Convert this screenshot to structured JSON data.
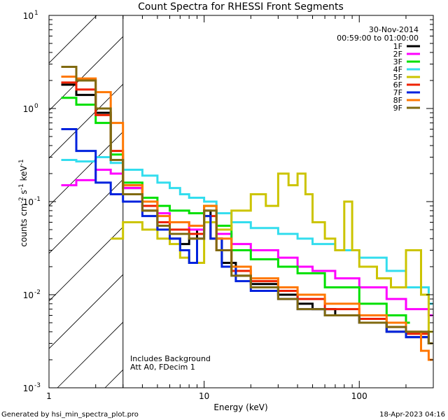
{
  "chart_data": {
    "type": "line",
    "title": "Count Spectra for RHESSI Front Segments",
    "xlabel": "Energy (keV)",
    "ylabel": "counts cm-2 s-1 keV-1",
    "xscale": "log",
    "yscale": "log",
    "xlim": [
      1,
      300
    ],
    "ylim": [
      0.001,
      10
    ],
    "x_ticks": [
      {
        "value": 1,
        "label": "1"
      },
      {
        "value": 10,
        "label": "10"
      },
      {
        "value": 100,
        "label": "100"
      }
    ],
    "y_ticks": [
      {
        "value": 10,
        "base": "10",
        "exp": "1"
      },
      {
        "value": 1,
        "base": "10",
        "exp": "0"
      },
      {
        "value": 0.1,
        "base": "10",
        "exp": "-1"
      },
      {
        "value": 0.01,
        "base": "10",
        "exp": "-2"
      },
      {
        "value": 0.001,
        "base": "10",
        "exp": "-3"
      }
    ],
    "hatched_region_x": [
      1,
      3
    ],
    "date": "30-Nov-2014",
    "time_range": "00:59:00 to 01:00:00",
    "annotations": [
      "Includes Background",
      "Att A0, FDecim 1"
    ],
    "legend_position": "top-right",
    "series": [
      {
        "name": "1F",
        "color": "#000000",
        "points": [
          [
            1.2,
            1.8
          ],
          [
            1.5,
            1.4
          ],
          [
            2,
            0.9
          ],
          [
            2.5,
            0.28
          ],
          [
            3,
            0.14
          ],
          [
            4,
            0.08
          ],
          [
            5,
            0.05
          ],
          [
            6,
            0.04
          ],
          [
            7,
            0.035
          ],
          [
            8,
            0.04
          ],
          [
            9,
            0.05
          ],
          [
            10,
            0.08
          ],
          [
            11,
            0.04
          ],
          [
            13,
            0.022
          ],
          [
            16,
            0.016
          ],
          [
            20,
            0.013
          ],
          [
            30,
            0.01
          ],
          [
            40,
            0.008
          ],
          [
            50,
            0.007
          ],
          [
            70,
            0.006
          ],
          [
            100,
            0.005
          ],
          [
            150,
            0.004
          ],
          [
            200,
            0.0035
          ],
          [
            280,
            0.003
          ]
        ]
      },
      {
        "name": "2F",
        "color": "#ff00ff",
        "points": [
          [
            1.2,
            0.15
          ],
          [
            1.5,
            0.17
          ],
          [
            2,
            0.22
          ],
          [
            2.5,
            0.2
          ],
          [
            3,
            0.14
          ],
          [
            4,
            0.1
          ],
          [
            5,
            0.075
          ],
          [
            6,
            0.06
          ],
          [
            8,
            0.05
          ],
          [
            10,
            0.06
          ],
          [
            12,
            0.045
          ],
          [
            15,
            0.035
          ],
          [
            20,
            0.03
          ],
          [
            30,
            0.025
          ],
          [
            40,
            0.02
          ],
          [
            50,
            0.018
          ],
          [
            70,
            0.015
          ],
          [
            100,
            0.012
          ],
          [
            150,
            0.009
          ],
          [
            200,
            0.007
          ],
          [
            280,
            0.006
          ]
        ]
      },
      {
        "name": "3F",
        "color": "#00e000",
        "points": [
          [
            1.2,
            1.3
          ],
          [
            1.5,
            1.1
          ],
          [
            2,
            0.7
          ],
          [
            2.5,
            0.32
          ],
          [
            3,
            0.16
          ],
          [
            4,
            0.11
          ],
          [
            5,
            0.09
          ],
          [
            6,
            0.08
          ],
          [
            8,
            0.075
          ],
          [
            10,
            0.09
          ],
          [
            12,
            0.055
          ],
          [
            15,
            0.03
          ],
          [
            20,
            0.024
          ],
          [
            30,
            0.02
          ],
          [
            40,
            0.017
          ],
          [
            60,
            0.012
          ],
          [
            100,
            0.008
          ],
          [
            150,
            0.006
          ],
          [
            200,
            0.005
          ]
        ]
      },
      {
        "name": "4F",
        "color": "#33ddee",
        "points": [
          [
            1.2,
            0.28
          ],
          [
            1.5,
            0.27
          ],
          [
            2,
            0.3
          ],
          [
            2.5,
            0.26
          ],
          [
            3,
            0.22
          ],
          [
            4,
            0.19
          ],
          [
            5,
            0.16
          ],
          [
            6,
            0.14
          ],
          [
            7,
            0.12
          ],
          [
            8,
            0.11
          ],
          [
            10,
            0.1
          ],
          [
            12,
            0.075
          ],
          [
            15,
            0.06
          ],
          [
            20,
            0.052
          ],
          [
            30,
            0.045
          ],
          [
            40,
            0.04
          ],
          [
            50,
            0.035
          ],
          [
            70,
            0.03
          ],
          [
            100,
            0.025
          ],
          [
            150,
            0.018
          ],
          [
            200,
            0.012
          ],
          [
            280,
            0.008
          ]
        ]
      },
      {
        "name": "5F",
        "color": "#ccc400",
        "points": [
          [
            2.5,
            0.04
          ],
          [
            3,
            0.06
          ],
          [
            4,
            0.05
          ],
          [
            5,
            0.04
          ],
          [
            6,
            0.035
          ],
          [
            7,
            0.025
          ],
          [
            8,
            0.022
          ],
          [
            10,
            0.06
          ],
          [
            12,
            0.05
          ],
          [
            15,
            0.08
          ],
          [
            20,
            0.12
          ],
          [
            25,
            0.09
          ],
          [
            30,
            0.2
          ],
          [
            35,
            0.15
          ],
          [
            40,
            0.2
          ],
          [
            45,
            0.12
          ],
          [
            50,
            0.06
          ],
          [
            60,
            0.04
          ],
          [
            70,
            0.03
          ],
          [
            80,
            0.1
          ],
          [
            90,
            0.03
          ],
          [
            100,
            0.02
          ],
          [
            130,
            0.015
          ],
          [
            160,
            0.012
          ],
          [
            200,
            0.03
          ],
          [
            250,
            0.01
          ],
          [
            280,
            0.004
          ]
        ]
      },
      {
        "name": "6F",
        "color": "#ee2200",
        "points": [
          [
            1.2,
            1.9
          ],
          [
            1.5,
            1.6
          ],
          [
            2,
            0.85
          ],
          [
            2.5,
            0.35
          ],
          [
            3,
            0.15
          ],
          [
            4,
            0.09
          ],
          [
            5,
            0.06
          ],
          [
            6,
            0.05
          ],
          [
            8,
            0.045
          ],
          [
            10,
            0.07
          ],
          [
            12,
            0.03
          ],
          [
            15,
            0.018
          ],
          [
            20,
            0.014
          ],
          [
            30,
            0.011
          ],
          [
            40,
            0.009
          ],
          [
            60,
            0.007
          ],
          [
            100,
            0.0055
          ],
          [
            150,
            0.0045
          ],
          [
            200,
            0.0038
          ],
          [
            280,
            0.003
          ]
        ]
      },
      {
        "name": "7F",
        "color": "#0022dd",
        "points": [
          [
            1.2,
            0.6
          ],
          [
            1.5,
            0.35
          ],
          [
            2,
            0.16
          ],
          [
            2.5,
            0.12
          ],
          [
            3,
            0.1
          ],
          [
            4,
            0.07
          ],
          [
            5,
            0.05
          ],
          [
            6,
            0.04
          ],
          [
            7,
            0.03
          ],
          [
            8,
            0.022
          ],
          [
            9,
            0.04
          ],
          [
            10,
            0.07
          ],
          [
            11,
            0.04
          ],
          [
            13,
            0.02
          ],
          [
            16,
            0.014
          ],
          [
            20,
            0.011
          ],
          [
            30,
            0.009
          ],
          [
            40,
            0.007
          ],
          [
            60,
            0.006
          ],
          [
            100,
            0.005
          ],
          [
            150,
            0.004
          ],
          [
            200,
            0.0035
          ],
          [
            280,
            0.003
          ]
        ]
      },
      {
        "name": "8F",
        "color": "#ff7700",
        "points": [
          [
            1.2,
            2.2
          ],
          [
            1.5,
            2.1
          ],
          [
            2,
            1.5
          ],
          [
            2.5,
            0.7
          ],
          [
            3,
            0.15
          ],
          [
            4,
            0.1
          ],
          [
            5,
            0.07
          ],
          [
            6,
            0.06
          ],
          [
            8,
            0.055
          ],
          [
            10,
            0.09
          ],
          [
            12,
            0.04
          ],
          [
            15,
            0.02
          ],
          [
            20,
            0.015
          ],
          [
            30,
            0.012
          ],
          [
            40,
            0.01
          ],
          [
            60,
            0.008
          ],
          [
            100,
            0.006
          ],
          [
            150,
            0.005
          ],
          [
            200,
            0.004
          ],
          [
            250,
            0.0025
          ],
          [
            280,
            0.002
          ]
        ]
      },
      {
        "name": "9F",
        "color": "#806a10",
        "points": [
          [
            1.2,
            2.8
          ],
          [
            1.5,
            2.0
          ],
          [
            2,
            1.0
          ],
          [
            2.5,
            0.28
          ],
          [
            3,
            0.12
          ],
          [
            4,
            0.08
          ],
          [
            5,
            0.055
          ],
          [
            6,
            0.045
          ],
          [
            8,
            0.04
          ],
          [
            10,
            0.08
          ],
          [
            12,
            0.03
          ],
          [
            15,
            0.016
          ],
          [
            20,
            0.012
          ],
          [
            30,
            0.009
          ],
          [
            40,
            0.007
          ],
          [
            60,
            0.006
          ],
          [
            100,
            0.005
          ],
          [
            150,
            0.0045
          ],
          [
            200,
            0.004
          ],
          [
            280,
            0.003
          ]
        ]
      }
    ]
  },
  "footer": {
    "left": "Generated by hsi_min_spectra_plot.pro",
    "right": "18-Apr-2023 04:16"
  }
}
